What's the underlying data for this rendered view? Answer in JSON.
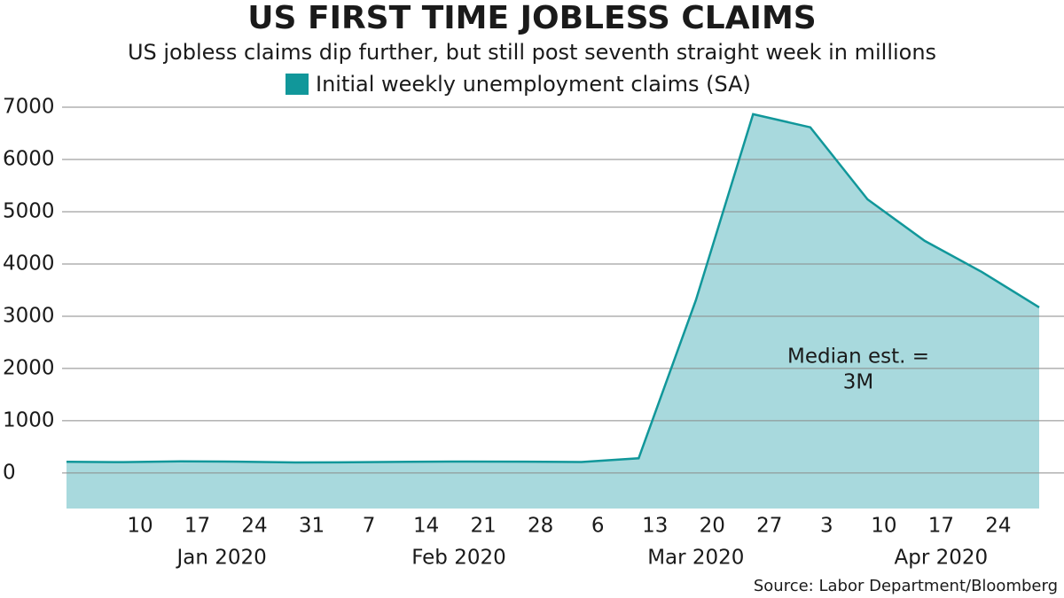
{
  "chart_data": {
    "type": "area",
    "title": "US FIRST TIME JOBLESS CLAIMS",
    "subtitle": "US jobless claims dip further, but still post seventh straight week in millions",
    "source": "Source: Labor Department/Bloomberg",
    "annotation": [
      "Median est. =",
      "3M"
    ],
    "x": [
      "2020-01-01",
      "2020-01-08",
      "2020-01-15",
      "2020-01-22",
      "2020-01-29",
      "2020-02-05",
      "2020-02-12",
      "2020-02-19",
      "2020-02-26",
      "2020-03-04",
      "2020-03-11",
      "2020-03-18",
      "2020-03-25",
      "2020-04-01",
      "2020-04-08",
      "2020-04-15",
      "2020-04-22",
      "2020-04-29"
    ],
    "series": [
      {
        "name": "Initial weekly unemployment claims (SA)",
        "color": "#11979a",
        "fill": "#a8d9dd",
        "values": [
          214,
          207,
          223,
          217,
          202,
          205,
          214,
          219,
          217,
          211,
          282,
          3307,
          6867,
          6615,
          5237,
          4442,
          3846,
          3169
        ]
      }
    ],
    "xlim": [
      "2020-01-01",
      "2020-04-29"
    ],
    "xticks": [
      {
        "value": "2020-01-10",
        "label": "10"
      },
      {
        "value": "2020-01-17",
        "label": "17"
      },
      {
        "value": "2020-01-24",
        "label": "24"
      },
      {
        "value": "2020-01-31",
        "label": "31"
      },
      {
        "value": "2020-02-07",
        "label": "7"
      },
      {
        "value": "2020-02-14",
        "label": "14"
      },
      {
        "value": "2020-02-21",
        "label": "21"
      },
      {
        "value": "2020-02-28",
        "label": "28"
      },
      {
        "value": "2020-03-06",
        "label": "6"
      },
      {
        "value": "2020-03-13",
        "label": "13"
      },
      {
        "value": "2020-03-20",
        "label": "20"
      },
      {
        "value": "2020-03-27",
        "label": "27"
      },
      {
        "value": "2020-04-03",
        "label": "3"
      },
      {
        "value": "2020-04-10",
        "label": "10"
      },
      {
        "value": "2020-04-17",
        "label": "17"
      },
      {
        "value": "2020-04-24",
        "label": "24"
      }
    ],
    "month_labels": [
      {
        "value": "2020-01-20",
        "label": "Jan 2020"
      },
      {
        "value": "2020-02-18",
        "label": "Feb 2020"
      },
      {
        "value": "2020-03-18",
        "label": "Mar 2020"
      },
      {
        "value": "2020-04-17",
        "label": "Apr 2020"
      }
    ],
    "ylim": [
      -680,
      7000
    ],
    "yticks": [
      0,
      1000,
      2000,
      3000,
      4000,
      5000,
      6000,
      7000
    ],
    "grid": true
  }
}
